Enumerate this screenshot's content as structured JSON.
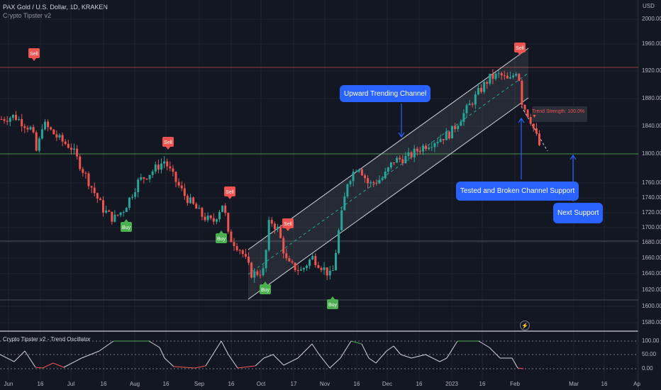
{
  "header": {
    "title": "PAX Gold / U.S. Dollar, 1D, KRAKEN",
    "indicator": "Crypto Tipster v2"
  },
  "price_axis": {
    "currency": "USD",
    "ticks": [
      "2000.00",
      "1960.00",
      "1920.00",
      "1880.00",
      "1840.00",
      "1800.00",
      "1760.00",
      "1740.00",
      "1720.00",
      "1700.00",
      "1680.00",
      "1660.00",
      "1640.00",
      "1620.00",
      "1600.00",
      "1580.00"
    ]
  },
  "date_axis": {
    "ticks": [
      "Jun",
      "16",
      "Jul",
      "16",
      "Aug",
      "16",
      "Sep",
      "16",
      "Oct",
      "17",
      "Nov",
      "16",
      "Dec",
      "16",
      "2023",
      "16",
      "Feb",
      "Mar",
      "16",
      "Ap"
    ]
  },
  "oscillator": {
    "title": "Crypto Tipster v2 - Trend Oscillator",
    "ticks": [
      "100.00",
      "50.00",
      "0.00"
    ]
  },
  "signals": {
    "sell": "Sell",
    "buy": "Buy"
  },
  "annotations": {
    "channel": "Upward Trending Channel",
    "broken": "Tested and Broken Channel Support",
    "next_support": "Next Support",
    "trend_strength": "Trend Strength: 100.0% ▼"
  },
  "colors": {
    "background": "#131722",
    "up": "#26a69a",
    "down": "#ef5350",
    "callout": "#2962ff",
    "support_line": "#4caf50",
    "resistance_line": "#ef5350"
  },
  "chart_data": {
    "type": "candlestick",
    "symbol": "PAX Gold / U.S. Dollar",
    "interval": "1D",
    "exchange": "KRAKEN",
    "ylim": [
      1580,
      2000
    ],
    "horizontal_levels": [
      1920,
      1800,
      1680,
      1610
    ],
    "approx_close_path": [
      {
        "date": "Jun",
        "close": 1850
      },
      {
        "date": "Jun 16",
        "close": 1840
      },
      {
        "date": "Jul",
        "close": 1810
      },
      {
        "date": "Jul 16",
        "close": 1715
      },
      {
        "date": "Aug",
        "close": 1760
      },
      {
        "date": "Aug 16",
        "close": 1790
      },
      {
        "date": "Sep",
        "close": 1720
      },
      {
        "date": "Sep 16",
        "close": 1690
      },
      {
        "date": "Oct",
        "close": 1650
      },
      {
        "date": "Oct 17",
        "close": 1650
      },
      {
        "date": "Nov",
        "close": 1630
      },
      {
        "date": "Nov 16",
        "close": 1770
      },
      {
        "date": "Dec",
        "close": 1790
      },
      {
        "date": "Dec 16",
        "close": 1800
      },
      {
        "date": "2023",
        "close": 1840
      },
      {
        "date": "2023 16",
        "close": 1910
      },
      {
        "date": "Feb",
        "close": 1880
      },
      {
        "date": "Feb (latest)",
        "close": 1810
      }
    ],
    "oscillator_range": [
      0,
      100
    ]
  }
}
